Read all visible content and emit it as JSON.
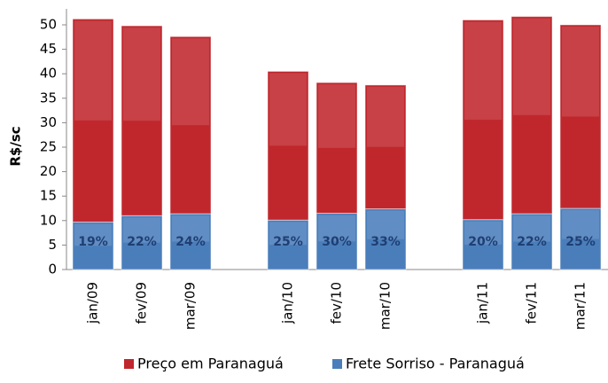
{
  "chart_data": {
    "type": "stacked_bar",
    "y_label": "R$/sc",
    "categories": [
      "jan/09",
      "fev/09",
      "mar/09",
      null,
      "jan/10",
      "fev/10",
      "mar/10",
      null,
      "jan/11",
      "fev/11",
      "mar/11"
    ],
    "series": [
      {
        "name": "Frete Sorriso - Paranaguá",
        "color": "#4a7ebb",
        "values": [
          9.7,
          11.0,
          11.4,
          null,
          10.1,
          11.5,
          12.4,
          null,
          10.2,
          11.4,
          12.5
        ]
      },
      {
        "name": "Preço em Paranaguá",
        "color": "#c0272d",
        "values": [
          41.5,
          38.8,
          36.2,
          null,
          30.4,
          26.7,
          25.3,
          null,
          40.8,
          40.3,
          37.5
        ]
      }
    ],
    "share_labels": [
      "19%",
      "22%",
      "24%",
      null,
      "25%",
      "30%",
      "33%",
      null,
      "20%",
      "22%",
      "25%"
    ],
    "ylim": [
      0,
      50
    ],
    "yticks": [
      0,
      5,
      10,
      15,
      20,
      25,
      30,
      35,
      40,
      45,
      50
    ]
  }
}
